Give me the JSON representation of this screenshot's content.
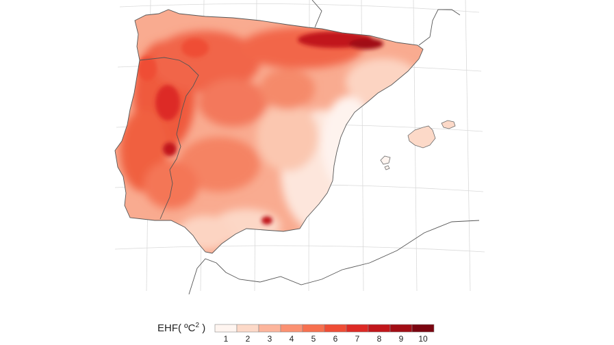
{
  "map": {
    "region": "Iberian Peninsula and Balearic Islands",
    "variable": "EHF",
    "description_scale": "sequential white-to-dark-red"
  },
  "legend": {
    "title_main": "EHF( ºC",
    "title_sup": "2",
    "title_close": " )",
    "ticks": [
      "1",
      "2",
      "3",
      "4",
      "5",
      "6",
      "7",
      "8",
      "9",
      "10"
    ],
    "colors": [
      "#fff5f0",
      "#fcd9c8",
      "#fcb59c",
      "#fb9172",
      "#f7704f",
      "#ef4d35",
      "#dd2a25",
      "#c1161b",
      "#a10d15",
      "#7a0510"
    ]
  }
}
